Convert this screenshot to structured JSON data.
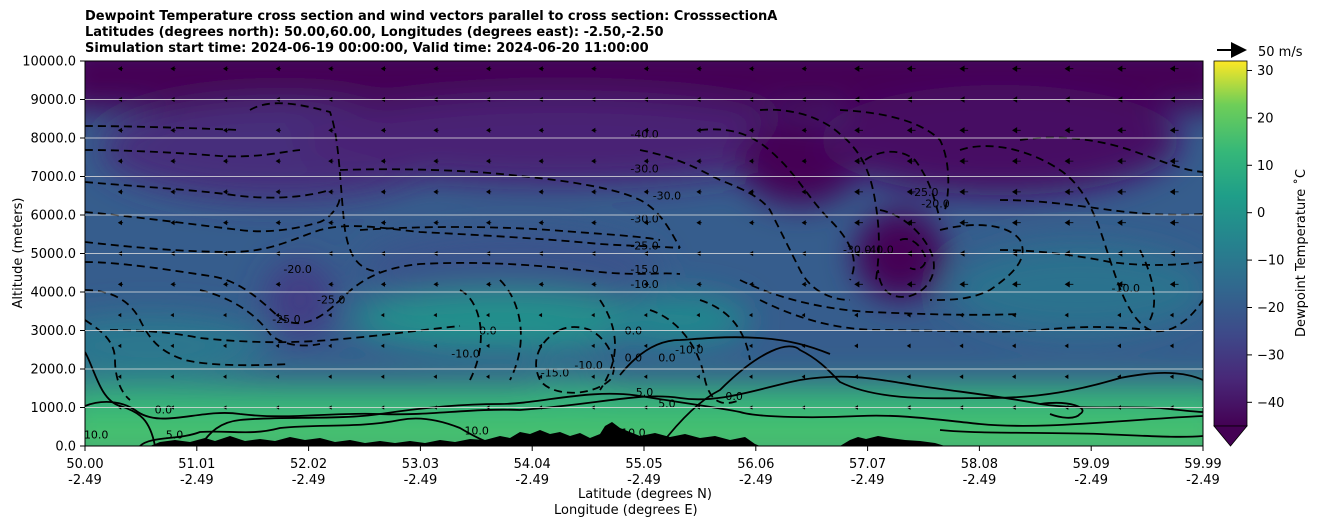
{
  "chart_data": {
    "type": "contour",
    "title_lines": [
      "Dewpoint Temperature cross section and wind vectors parallel to cross section: CrosssectionA",
      "Latitudes (degrees north): 50.00,60.00, Longitudes (degrees east): -2.50,-2.50",
      "Simulation start time: 2024-06-19 00:00:00, Valid time: 2024-06-20 11:00:00"
    ],
    "xlabel_lat": "Latitude (degrees N)",
    "xlabel_lon": "Longitude (degrees E)",
    "ylabel": "Altitude (meters)",
    "x_ticks": [
      {
        "lat": "50.00",
        "lon": "-2.49"
      },
      {
        "lat": "51.01",
        "lon": "-2.49"
      },
      {
        "lat": "52.02",
        "lon": "-2.49"
      },
      {
        "lat": "53.03",
        "lon": "-2.49"
      },
      {
        "lat": "54.04",
        "lon": "-2.49"
      },
      {
        "lat": "55.05",
        "lon": "-2.49"
      },
      {
        "lat": "56.06",
        "lon": "-2.49"
      },
      {
        "lat": "57.07",
        "lon": "-2.49"
      },
      {
        "lat": "58.08",
        "lon": "-2.49"
      },
      {
        "lat": "59.09",
        "lon": "-2.49"
      },
      {
        "lat": "59.99",
        "lon": "-2.49"
      }
    ],
    "y_ticks": [
      "0.0",
      "1000.0",
      "2000.0",
      "3000.0",
      "4000.0",
      "5000.0",
      "6000.0",
      "7000.0",
      "8000.0",
      "9000.0",
      "10000.0"
    ],
    "ylim": [
      0,
      10000
    ],
    "colorbar": {
      "label": "Dewpoint Temperature ˚C",
      "ticks": [
        "30",
        "20",
        "10",
        "0",
        "−10",
        "−20",
        "−30",
        "−40"
      ],
      "range": [
        -45,
        32
      ],
      "colormap": "viridis"
    },
    "wind_key_label": "50 m/s",
    "contour_labels": [
      {
        "text": "-40.0",
        "lat": 55.0,
        "alt": 8000
      },
      {
        "text": "-30.0",
        "lat": 55.0,
        "alt": 7100
      },
      {
        "text": "-30.0",
        "lat": 55.2,
        "alt": 6400
      },
      {
        "text": "-30.0",
        "lat": 55.0,
        "alt": 5800
      },
      {
        "text": "-25.0",
        "lat": 55.0,
        "alt": 5100
      },
      {
        "text": "-15.0",
        "lat": 55.0,
        "alt": 4500
      },
      {
        "text": "-10.0",
        "lat": 55.0,
        "alt": 4100
      },
      {
        "text": "-20.0",
        "lat": 51.9,
        "alt": 4500
      },
      {
        "text": "-25.0",
        "lat": 52.2,
        "alt": 3700
      },
      {
        "text": "-25.0",
        "lat": 51.8,
        "alt": 3200
      },
      {
        "text": "-20.0",
        "lat": 57.6,
        "alt": 6200
      },
      {
        "text": "-25.0",
        "lat": 57.5,
        "alt": 6500
      },
      {
        "text": "-30.0",
        "lat": 56.9,
        "alt": 5000
      },
      {
        "text": "-40.0",
        "lat": 57.1,
        "alt": 5000
      },
      {
        "text": "-10.0",
        "lat": 59.3,
        "alt": 4000
      },
      {
        "text": "-15.0",
        "lat": 54.2,
        "alt": 1800
      },
      {
        "text": "-10.0",
        "lat": 55.4,
        "alt": 2400
      },
      {
        "text": "-10.0",
        "lat": 54.5,
        "alt": 2000
      },
      {
        "text": "-10.0",
        "lat": 53.4,
        "alt": 2300
      },
      {
        "text": "0.0",
        "lat": 53.6,
        "alt": 2900
      },
      {
        "text": "0.0",
        "lat": 54.9,
        "alt": 2900
      },
      {
        "text": "0.0",
        "lat": 54.9,
        "alt": 2200
      },
      {
        "text": "0.0",
        "lat": 55.2,
        "alt": 2200
      },
      {
        "text": "0.0",
        "lat": 55.8,
        "alt": 1200
      },
      {
        "text": "0.0",
        "lat": 50.7,
        "alt": 850
      },
      {
        "text": "5.0",
        "lat": 55.0,
        "alt": 1300
      },
      {
        "text": "5.0",
        "lat": 55.2,
        "alt": 1000
      },
      {
        "text": "5.0",
        "lat": 50.8,
        "alt": 200
      },
      {
        "text": "10.0",
        "lat": 50.1,
        "alt": 200
      },
      {
        "text": "10.0",
        "lat": 53.5,
        "alt": 300
      },
      {
        "text": "10.0",
        "lat": 54.9,
        "alt": 250
      }
    ]
  }
}
